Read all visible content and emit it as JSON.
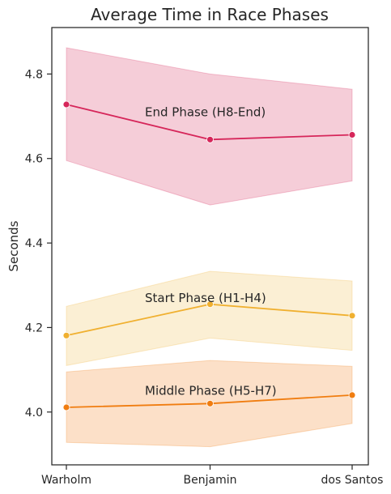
{
  "chart_data": {
    "type": "line",
    "title": "Average Time in Race Phases",
    "xlabel": "",
    "ylabel": "Seconds",
    "categories": [
      "Warholm",
      "Benjamin",
      "dos Santos"
    ],
    "ylim": [
      3.875,
      4.91
    ],
    "yticks": [
      "3.875",
      "4.0",
      "4.2",
      "4.4",
      "4.6",
      "4.8"
    ],
    "ytick_labels": [
      "",
      "4.0",
      "4.2",
      "4.4",
      "4.6",
      "4.8"
    ],
    "grid": false,
    "legend": "none",
    "series": [
      {
        "annotation": "End Phase (H8-End)",
        "color": "#d6265a",
        "fill": "#f5cdd8",
        "values": [
          4.728,
          4.645,
          4.656
        ],
        "band_upper": [
          4.862,
          4.8,
          4.764
        ],
        "band_lower": [
          4.595,
          4.49,
          4.547
        ]
      },
      {
        "annotation": "Start Phase (H1-H4)",
        "color": "#f0b030",
        "fill": "#fbefd4",
        "values": [
          4.181,
          4.255,
          4.228
        ],
        "band_upper": [
          4.25,
          4.333,
          4.31
        ],
        "band_lower": [
          4.11,
          4.175,
          4.146
        ]
      },
      {
        "annotation": "Middle Phase (H5-H7)",
        "color": "#f07d10",
        "fill": "#fce0c8",
        "values": [
          4.011,
          4.02,
          4.04
        ],
        "band_upper": [
          4.095,
          4.122,
          4.108
        ],
        "band_lower": [
          3.928,
          3.918,
          3.973
        ]
      }
    ]
  }
}
